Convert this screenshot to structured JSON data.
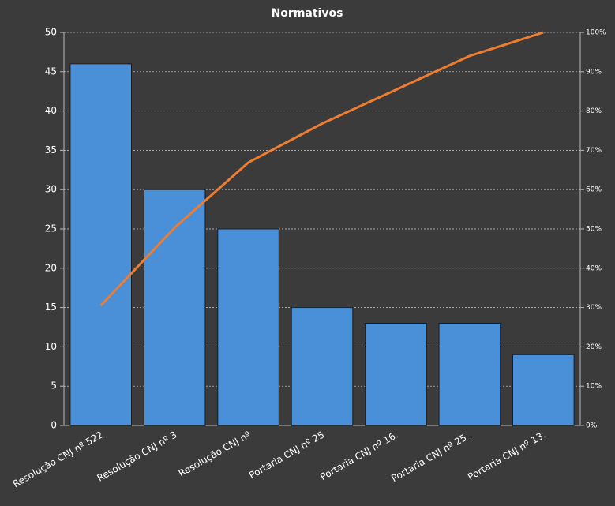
{
  "chart_data": {
    "type": "pareto",
    "title": "Normativos",
    "categories": [
      "Resolução CNJ nº 522",
      "Resolução CNJ nº 3",
      "Resolução CNJ nº",
      "Portaria CNJ nº 25",
      "Portaria CNJ nº 16.",
      "Portaria CNJ nº 25 .",
      "Portaria CNJ nº 13."
    ],
    "series": [
      {
        "color": "#4a90d9",
        "values": [
          46,
          30,
          25,
          15,
          13,
          13,
          9
        ]
      },
      {
        "color": "#ed7d31",
        "axis": "y2",
        "values": [
          30.5,
          50.3,
          66.9,
          76.8,
          85.4,
          94.0,
          100
        ]
      }
    ],
    "ylim": [
      0,
      50
    ],
    "yticks": [
      0,
      5,
      10,
      15,
      20,
      25,
      30,
      35,
      40,
      45,
      50
    ],
    "y2lim": [
      0,
      100
    ],
    "y2ticks": [
      {
        "value": 0,
        "label": "0%"
      },
      {
        "value": 10,
        "label": "10%"
      },
      {
        "value": 20,
        "label": "20%"
      },
      {
        "value": 30,
        "label": "30%"
      },
      {
        "value": 40,
        "label": "40%"
      },
      {
        "value": 50,
        "label": "50%"
      },
      {
        "value": 60,
        "label": "60%"
      },
      {
        "value": 70,
        "label": "70%"
      },
      {
        "value": 80,
        "label": "80%"
      },
      {
        "value": 90,
        "label": "90%"
      },
      {
        "value": 100,
        "label": "100%"
      }
    ],
    "grid": true
  }
}
